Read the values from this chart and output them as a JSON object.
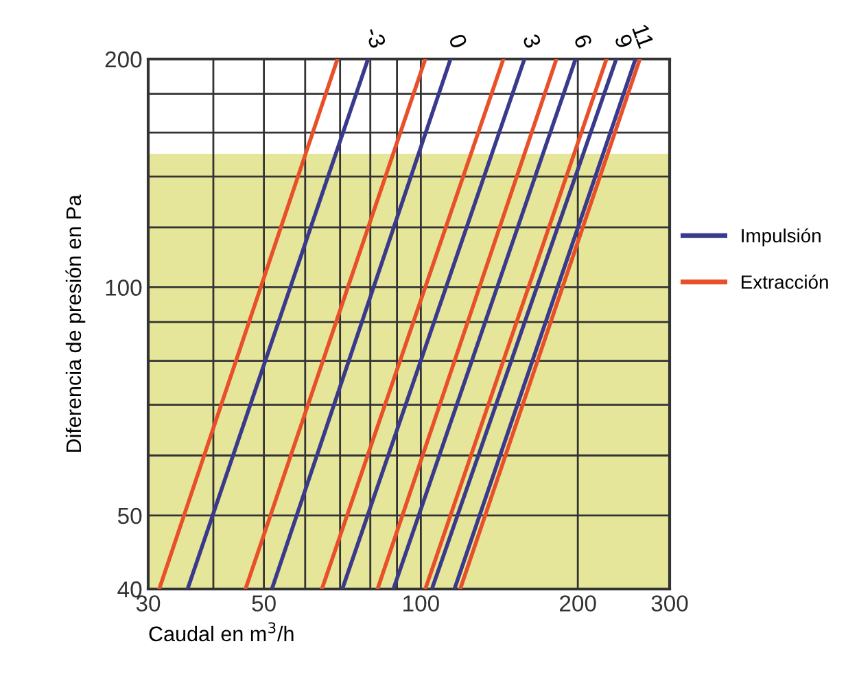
{
  "chart_data": {
    "type": "line",
    "xlabel": "Caudal en m$^{3}$/h",
    "ylabel": "Diferencia de presión en Pa",
    "log": "xy",
    "xlim": [
      30,
      300
    ],
    "ylim": [
      40,
      200
    ],
    "xticks": [
      30,
      {
        "value": 40,
        "label": null
      },
      50,
      {
        "value": 60,
        "label": null
      },
      {
        "value": 70,
        "label": null
      },
      {
        "value": 80,
        "label": null
      },
      {
        "value": 90,
        "label": null
      },
      100,
      200,
      300
    ],
    "yticks": [
      40,
      50,
      {
        "value": 60,
        "label": null
      },
      {
        "value": 70,
        "label": null
      },
      {
        "value": 80,
        "label": null
      },
      {
        "value": 90,
        "label": null
      },
      100,
      {
        "value": 120,
        "label": null
      },
      {
        "value": 140,
        "label": null
      },
      {
        "value": 160,
        "label": null
      },
      {
        "value": 180,
        "label": null
      },
      200
    ],
    "grid": true,
    "legend": "right",
    "line_style": "solid",
    "marker": "none",
    "bands": [
      {
        "axis": "y",
        "from": 40,
        "to": 150,
        "color": "#e6e69a"
      }
    ],
    "series": [
      {
        "name": "Impulsión",
        "color": "#3a3a8c",
        "x": [
          35.7,
          79.2
        ],
        "values": [
          40,
          200
        ]
      },
      {
        "name": "Extracción",
        "color": "#e8502a",
        "x": [
          31.5,
          69.2
        ],
        "values": [
          40,
          200
        ]
      },
      {
        "color": "#3a3a8c",
        "x": [
          51.8,
          114
        ],
        "values": [
          40,
          200
        ]
      },
      {
        "color": "#e8502a",
        "x": [
          46.1,
          102
        ],
        "values": [
          40,
          200
        ]
      },
      {
        "color": "#3a3a8c",
        "x": [
          70.7,
          158
        ],
        "values": [
          40,
          200
        ]
      },
      {
        "color": "#e8502a",
        "x": [
          64.6,
          144
        ],
        "values": [
          40,
          200
        ]
      },
      {
        "color": "#3a3a8c",
        "x": [
          88.6,
          198
        ],
        "values": [
          40,
          200
        ]
      },
      {
        "color": "#e8502a",
        "x": [
          82.6,
          182
        ],
        "values": [
          40,
          200
        ]
      },
      {
        "color": "#3a3a8c",
        "x": [
          105,
          237
        ],
        "values": [
          40,
          200
        ]
      },
      {
        "color": "#e8502a",
        "x": [
          102,
          227
        ],
        "values": [
          40,
          200
        ]
      },
      {
        "color": "#3a3a8c",
        "x": [
          116,
          258
        ],
        "values": [
          40,
          200
        ]
      },
      {
        "color": "#e8502a",
        "x": [
          119,
          263
        ],
        "values": [
          40,
          200
        ]
      }
    ],
    "annotations": [
      {
        "text": "-3",
        "x": 79.2,
        "y": 200
      },
      {
        "text": "0",
        "x": 114,
        "y": 200
      },
      {
        "text": "3",
        "x": 158,
        "y": 200
      },
      {
        "text": "6",
        "x": 198,
        "y": 200
      },
      {
        "text": "9",
        "x": 237,
        "y": 200
      },
      {
        "text": "11",
        "x": 258,
        "y": 200
      }
    ]
  }
}
